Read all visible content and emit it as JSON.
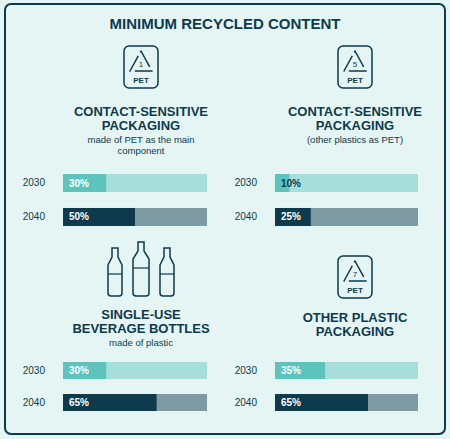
{
  "title": "MINIMUM RECYCLED CONTENT",
  "chart_data": [
    {
      "type": "bar",
      "orientation": "horizontal",
      "title": "CONTACT-SENSITIVE PACKAGING",
      "subtitle": "made of PET as the main component",
      "annotations": [
        "1",
        "PET"
      ],
      "categories": [
        "2030",
        "2040"
      ],
      "values": [
        30,
        50
      ],
      "value_labels": [
        "30%",
        "50%"
      ],
      "data_labels": true,
      "colors": [
        "#5cc3bd",
        "#0d3a4d"
      ],
      "xlim": [
        0,
        100
      ],
      "tick_labels": "y"
    },
    {
      "type": "bar",
      "orientation": "horizontal",
      "title": "CONTACT-SENSITIVE PACKAGING",
      "subtitle": "(other plastics as PET)",
      "annotations": [
        "5",
        "PET"
      ],
      "categories": [
        "2030",
        "2040"
      ],
      "values": [
        10,
        25
      ],
      "value_labels": [
        "10%",
        "25%"
      ],
      "data_labels": true,
      "colors": [
        "#5cc3bd",
        "#0d3a4d"
      ],
      "xlim": [
        0,
        100
      ],
      "tick_labels": "y"
    },
    {
      "type": "bar",
      "orientation": "horizontal",
      "title": "SINGLE-USE BEVERAGE BOTTLES",
      "subtitle": "made of plastic",
      "categories": [
        "2030",
        "2040"
      ],
      "values": [
        30,
        65
      ],
      "value_labels": [
        "30%",
        "65%"
      ],
      "data_labels": true,
      "colors": [
        "#5cc3bd",
        "#0d3a4d"
      ],
      "xlim": [
        0,
        100
      ],
      "tick_labels": "y"
    },
    {
      "type": "bar",
      "orientation": "horizontal",
      "title": "OTHER PLASTIC PACKAGING",
      "annotations": [
        "7",
        "PET"
      ],
      "categories": [
        "2030",
        "2040"
      ],
      "values": [
        35,
        65
      ],
      "value_labels": [
        "35%",
        "65%"
      ],
      "data_labels": true,
      "colors": [
        "#5cc3bd",
        "#0d3a4d"
      ],
      "xlim": [
        0,
        100
      ],
      "tick_labels": "y"
    }
  ]
}
